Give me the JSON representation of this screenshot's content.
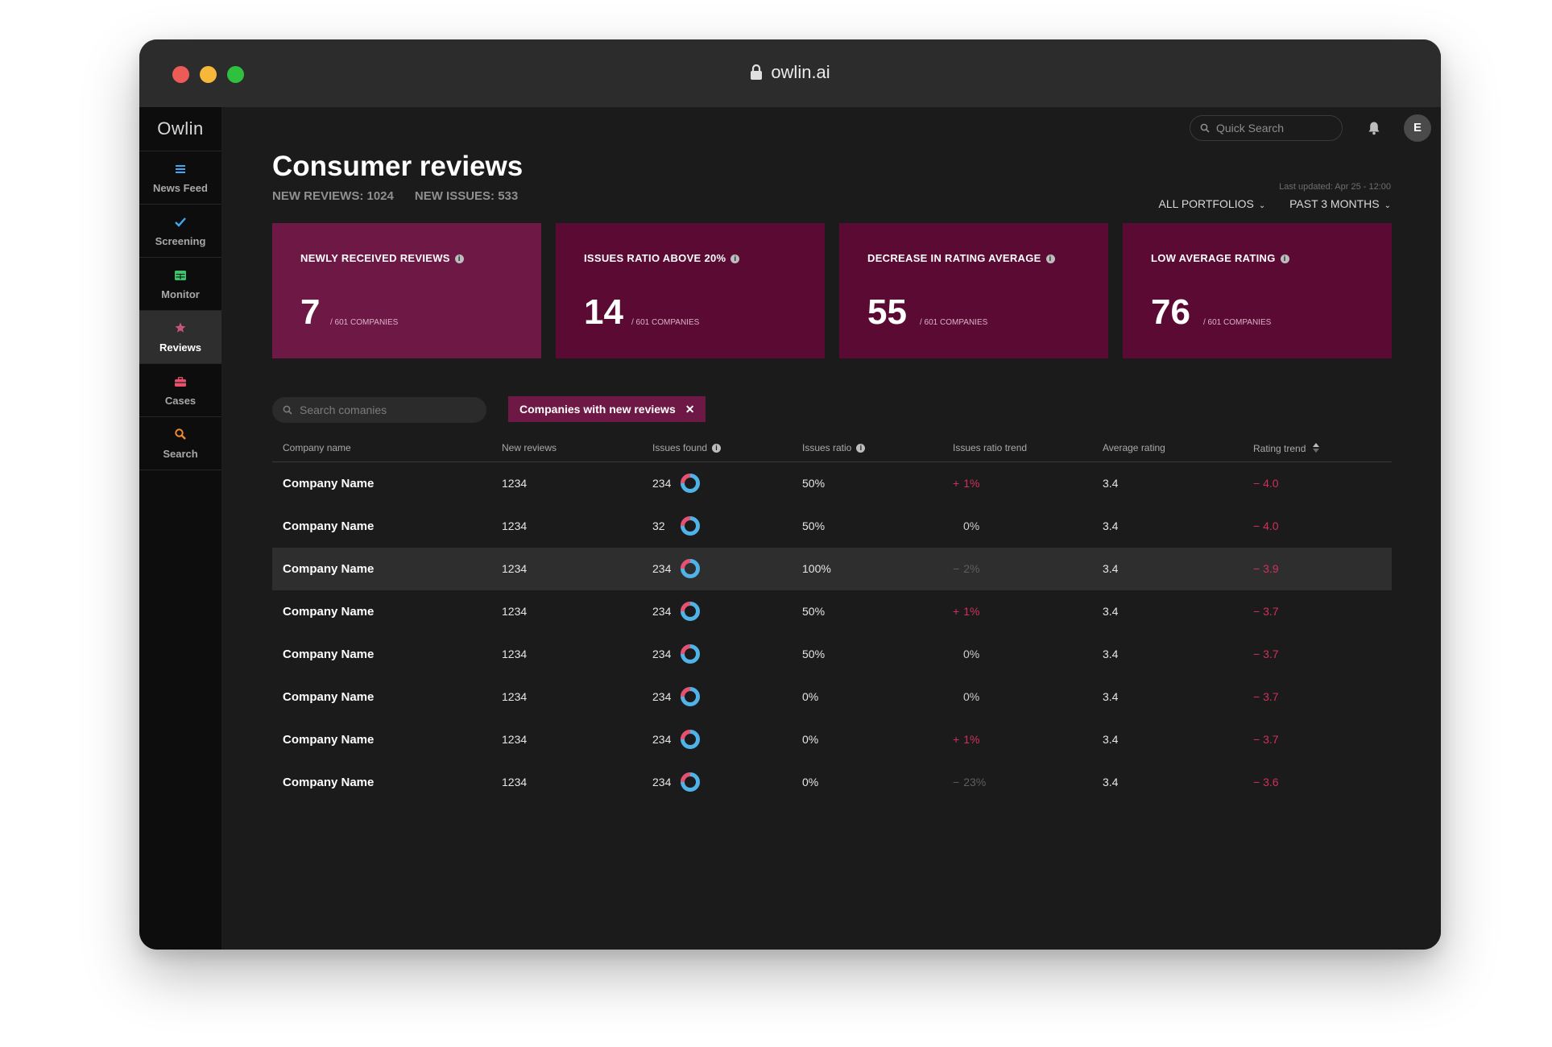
{
  "browser": {
    "url": "owlin.ai"
  },
  "app": {
    "logo": "Owlin"
  },
  "sidebar": {
    "items": [
      {
        "label": "News Feed"
      },
      {
        "label": "Screening"
      },
      {
        "label": "Monitor"
      },
      {
        "label": "Reviews"
      },
      {
        "label": "Cases"
      },
      {
        "label": "Search"
      }
    ]
  },
  "header": {
    "search_placeholder": "Quick Search",
    "avatar_initial": "E"
  },
  "page": {
    "title": "Consumer reviews",
    "new_reviews": "NEW REVIEWS: 1024",
    "new_issues": "NEW ISSUES: 533",
    "last_updated": "Last updated: Apr 25 - 12:00",
    "filter_portfolio": "ALL PORTFOLIOS",
    "filter_period": "PAST 3 MONTHS"
  },
  "cards": [
    {
      "title": "NEWLY RECEIVED REVIEWS",
      "value": "7",
      "sub": "/ 601 COMPANIES"
    },
    {
      "title": "ISSUES RATIO ABOVE 20%",
      "value": "14",
      "sub": "/ 601 COMPANIES"
    },
    {
      "title": "DECREASE IN RATING AVERAGE",
      "value": "55",
      "sub": "/ 601 COMPANIES"
    },
    {
      "title": "LOW AVERAGE RATING",
      "value": "76",
      "sub": "/ 601 COMPANIES"
    }
  ],
  "table_controls": {
    "search_placeholder": "Search comanies",
    "chip_label": "Companies with new reviews"
  },
  "table": {
    "headers": {
      "name": "Company name",
      "new_reviews": "New reviews",
      "issues_found": "Issues found",
      "issues_ratio": "Issues ratio",
      "issues_ratio_trend": "Issues ratio trend",
      "average_rating": "Average rating",
      "rating_trend": "Rating trend"
    },
    "rows": [
      {
        "name": "Company Name",
        "new_reviews": "1234",
        "issues": "234",
        "ratio": "50%",
        "trend_sign": "+",
        "trend": "1%",
        "avg": "3.4",
        "rating_trend": "− 4.0"
      },
      {
        "name": "Company Name",
        "new_reviews": "1234",
        "issues": "32",
        "ratio": "50%",
        "trend_sign": "",
        "trend": "0%",
        "avg": "3.4",
        "rating_trend": "− 4.0"
      },
      {
        "name": "Company Name",
        "new_reviews": "1234",
        "issues": "234",
        "ratio": "100%",
        "trend_sign": "−",
        "trend": "2%",
        "avg": "3.4",
        "rating_trend": "− 3.9"
      },
      {
        "name": "Company Name",
        "new_reviews": "1234",
        "issues": "234",
        "ratio": "50%",
        "trend_sign": "+",
        "trend": "1%",
        "avg": "3.4",
        "rating_trend": "− 3.7"
      },
      {
        "name": "Company Name",
        "new_reviews": "1234",
        "issues": "234",
        "ratio": "50%",
        "trend_sign": "",
        "trend": "0%",
        "avg": "3.4",
        "rating_trend": "− 3.7"
      },
      {
        "name": "Company Name",
        "new_reviews": "1234",
        "issues": "234",
        "ratio": "0%",
        "trend_sign": "",
        "trend": "0%",
        "avg": "3.4",
        "rating_trend": "− 3.7"
      },
      {
        "name": "Company Name",
        "new_reviews": "1234",
        "issues": "234",
        "ratio": "0%",
        "trend_sign": "+",
        "trend": "1%",
        "avg": "3.4",
        "rating_trend": "− 3.7"
      },
      {
        "name": "Company Name",
        "new_reviews": "1234",
        "issues": "234",
        "ratio": "0%",
        "trend_sign": "−",
        "trend": "23%",
        "avg": "3.4",
        "rating_trend": "− 3.6"
      }
    ]
  },
  "colors": {
    "accent": "#6e1846",
    "card": "#5a0a33",
    "negative": "#d1305c",
    "donut_blue": "#4fb3e8",
    "donut_pink": "#e8506f"
  }
}
